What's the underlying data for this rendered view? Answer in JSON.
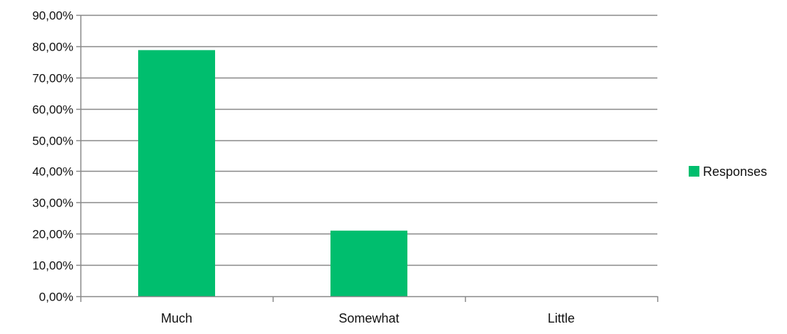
{
  "chart_data": {
    "type": "bar",
    "categories": [
      "Much",
      "Somewhat",
      "Little"
    ],
    "series": [
      {
        "name": "Responses",
        "values": [
          0.7875,
          0.21,
          0.0
        ]
      }
    ],
    "ylim": [
      0,
      0.9
    ],
    "y_ticks": [
      0,
      0.1,
      0.2,
      0.3,
      0.4,
      0.5,
      0.6,
      0.7,
      0.8,
      0.9
    ],
    "y_tick_labels": [
      "0,00%",
      "10,00%",
      "20,00%",
      "30,00%",
      "40,00%",
      "50,00%",
      "60,00%",
      "70,00%",
      "80,00%",
      "90,00%"
    ],
    "grid": true,
    "legend_position": "right",
    "colors": {
      "bar": "#00BE6E",
      "grid": "#888888",
      "axis": "#888888"
    }
  }
}
